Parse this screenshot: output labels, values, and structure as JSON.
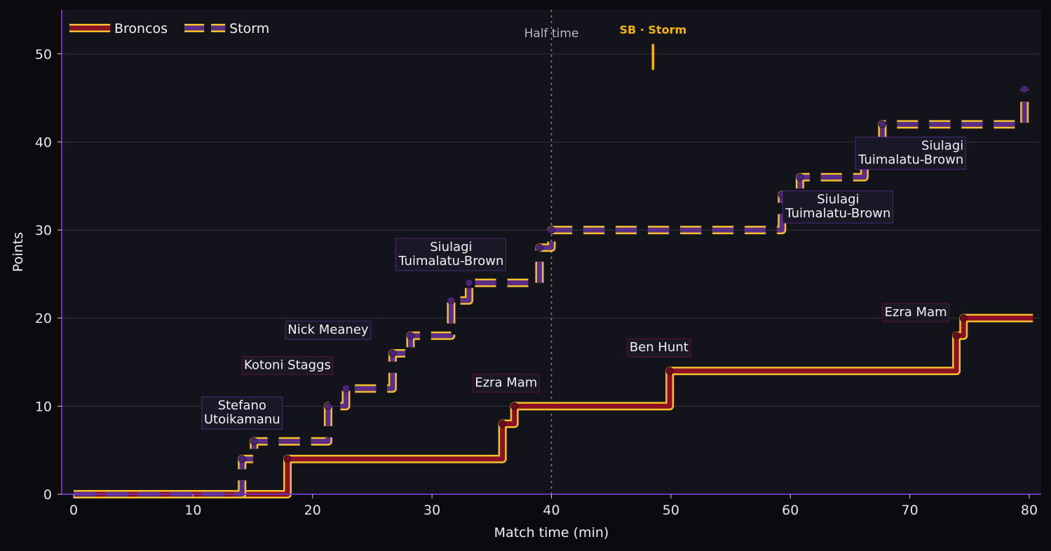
{
  "chart_data": {
    "type": "line",
    "step": "post",
    "xlabel": "Match time (min)",
    "ylabel": "Points",
    "xlim": [
      -1,
      81
    ],
    "ylim": [
      0,
      55
    ],
    "xticks": [
      0,
      10,
      20,
      30,
      40,
      50,
      60,
      70,
      80
    ],
    "yticks": [
      0,
      10,
      20,
      30,
      40,
      50
    ],
    "grid": "horizontal",
    "legend_position": "top-left",
    "colors": {
      "broncos_line": "#8b1025",
      "storm_line": "#5a2d86",
      "outline": "#f4c02c",
      "background": "#13131b",
      "spine": "#6a36b0"
    },
    "series": [
      {
        "name": "Broncos",
        "style": "solid",
        "points": [
          {
            "x": 0,
            "y": 0
          },
          {
            "x": 17.9,
            "y": 4
          },
          {
            "x": 35.9,
            "y": 8
          },
          {
            "x": 36.9,
            "y": 10
          },
          {
            "x": 49.9,
            "y": 14
          },
          {
            "x": 73.9,
            "y": 18
          },
          {
            "x": 74.5,
            "y": 20
          }
        ],
        "end_x": 80.3
      },
      {
        "name": "Storm",
        "style": "dashed",
        "points": [
          {
            "x": 0,
            "y": 0
          },
          {
            "x": 14.1,
            "y": 4
          },
          {
            "x": 15.1,
            "y": 6
          },
          {
            "x": 21.3,
            "y": 10
          },
          {
            "x": 22.8,
            "y": 12
          },
          {
            "x": 26.7,
            "y": 16
          },
          {
            "x": 28.2,
            "y": 18
          },
          {
            "x": 31.6,
            "y": 22
          },
          {
            "x": 33.1,
            "y": 24
          },
          {
            "x": 39.0,
            "y": 28
          },
          {
            "x": 40.0,
            "y": 30
          },
          {
            "x": 59.3,
            "y": 34
          },
          {
            "x": 60.8,
            "y": 36
          },
          {
            "x": 66.2,
            "y": 40
          },
          {
            "x": 67.7,
            "y": 42
          },
          {
            "x": 79.6,
            "y": 46
          }
        ],
        "end_x": 79.6
      }
    ],
    "annotations": [
      {
        "lines": [
          "Stefano",
          "Utoikamanu"
        ],
        "x": 14.1,
        "y": 9.3,
        "team": "Storm"
      },
      {
        "lines": [
          "Kotoni Staggs"
        ],
        "x": 17.9,
        "y": 14.7,
        "team": "Broncos"
      },
      {
        "lines": [
          "Nick Meaney"
        ],
        "x": 21.3,
        "y": 18.7,
        "team": "Storm"
      },
      {
        "lines": [
          "Siulagi",
          "Tuimalatu-Brown"
        ],
        "x": 31.6,
        "y": 27.3,
        "team": "Storm"
      },
      {
        "lines": [
          "Ezra Mam"
        ],
        "x": 36.2,
        "y": 12.7,
        "team": "Broncos"
      },
      {
        "lines": [
          "Ben Hunt"
        ],
        "x": 49.0,
        "y": 16.7,
        "team": "Broncos"
      },
      {
        "lines": [
          "Siulagi",
          "Tuimalatu-Brown"
        ],
        "x": 64.0,
        "y": 32.7,
        "team": "Storm"
      },
      {
        "lines": [
          "Ezra Mam"
        ],
        "x": 70.5,
        "y": 20.7,
        "team": "Broncos"
      },
      {
        "lines": [
          "Siulagi",
          "Tuimalatu-Brown"
        ],
        "x": 74.5,
        "y": 38.8,
        "team": "Storm",
        "align": "right"
      }
    ],
    "reference_lines": [
      {
        "x": 40,
        "label": "Half time"
      }
    ],
    "markers": [
      {
        "x": 48.5,
        "y_from": 48.3,
        "y_to": 51,
        "label": "SB · Storm"
      }
    ]
  }
}
